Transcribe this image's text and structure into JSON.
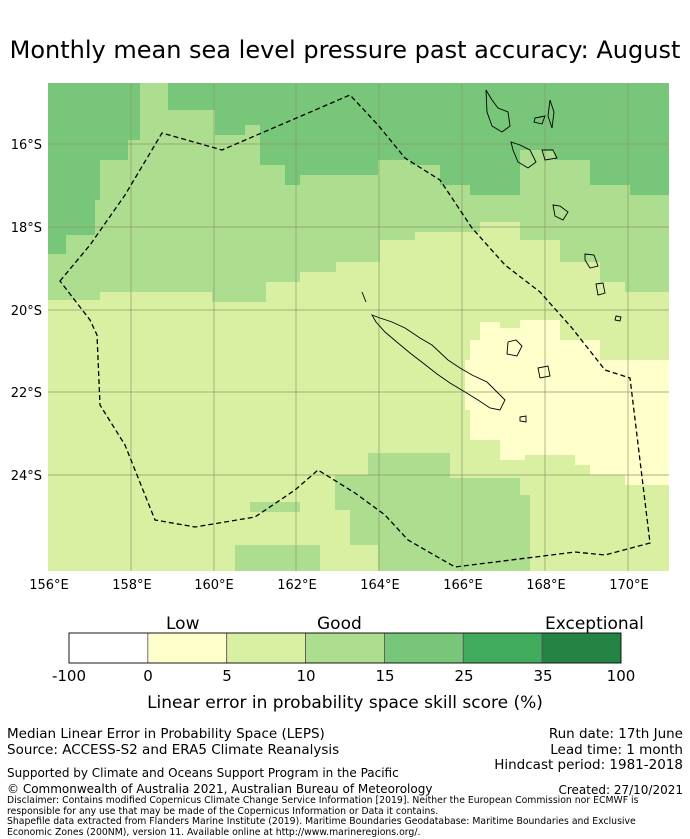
{
  "title": "Monthly mean sea level pressure past accuracy: August",
  "map": {
    "lon_labels": [
      "156°E",
      "158°E",
      "160°E",
      "162°E",
      "164°E",
      "166°E",
      "168°E",
      "170°E"
    ],
    "lat_labels": [
      "16°S",
      "18°S",
      "20°S",
      "22°S",
      "24°S"
    ],
    "grid_color": "#8a9a6a",
    "outline_color": "#000000"
  },
  "colorbar": {
    "category_labels": {
      "low": "Low",
      "good": "Good",
      "exceptional": "Exceptional"
    },
    "ticks": [
      "-100",
      "0",
      "5",
      "10",
      "15",
      "25",
      "35",
      "100"
    ],
    "colors": [
      "#ffffff",
      "#ffffcc",
      "#d9f0a3",
      "#addd8e",
      "#78c679",
      "#41ab5d",
      "#238443"
    ],
    "label": "Linear error in probability space skill score (%)"
  },
  "info": {
    "left_line1": "Median Linear Error in Probability Space (LEPS)",
    "left_line2": "Source: ACCESS-S2 and ERA5 Climate Reanalysis",
    "run_date": "Run date: 17th June",
    "lead_time": "Lead time: 1 month",
    "hindcast": "Hindcast period: 1981-2018",
    "supported": "Supported by Climate and Oceans Support Program in the Pacific",
    "copyright": "© Commonwealth of Australia 2021, Australian Bureau of Meteorology",
    "created": "Created: 27/10/2021",
    "disclaimer": "Disclaimer: Contains modified Copernicus Climate Change Service Information [2019]. Neither the European Commission nor ECMWF is responsible for any use that may be made of the Copernicus Information or Data it contains.",
    "shapefile": "Shapefile data extracted from Flanders Marine Institute (2019). Maritime Boundaries Geodatabase: Maritime Boundaries and Exclusive Economic Zones (200NM), version 11. Available online at http://www.marineregions.org/."
  }
}
